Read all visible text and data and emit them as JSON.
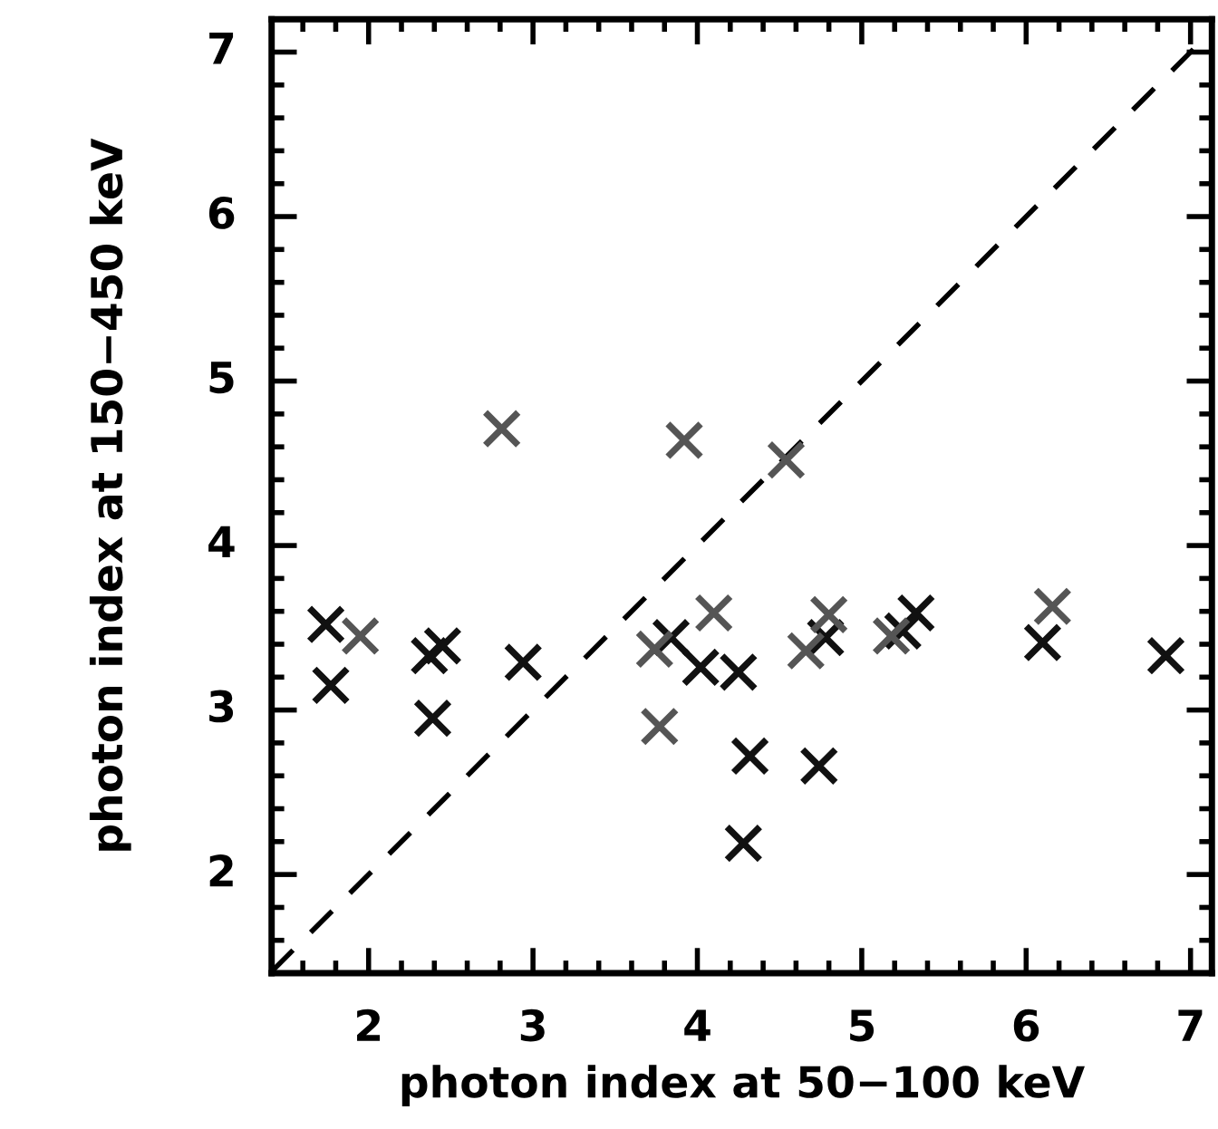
{
  "chart_data": {
    "type": "scatter",
    "xlabel": "photon index at 50−100 keV",
    "ylabel": "photon index at 150−450 keV",
    "xlim": [
      1.41,
      7.13
    ],
    "ylim": [
      1.4,
      7.2
    ],
    "xticks": [
      2,
      3,
      4,
      5,
      6,
      7
    ],
    "yticks": [
      2,
      3,
      4,
      5,
      6,
      7
    ],
    "grid": false,
    "legend": false,
    "marker": "cross",
    "series": [
      {
        "color": "#111111",
        "x": [
          1.74,
          1.77,
          2.37,
          2.45,
          2.39,
          2.94,
          3.84,
          4.02,
          4.25,
          4.32,
          4.28,
          4.74,
          4.78,
          5.33,
          5.25,
          6.1,
          6.85
        ],
        "values": [
          3.52,
          3.15,
          3.33,
          3.39,
          2.95,
          3.29,
          3.44,
          3.26,
          3.23,
          2.72,
          2.19,
          2.66,
          3.44,
          3.59,
          3.48,
          3.41,
          3.33
        ]
      },
      {
        "color": "#555555",
        "x": [
          1.95,
          2.81,
          3.92,
          4.54,
          3.74,
          3.77,
          4.1,
          4.66,
          4.8,
          5.18,
          6.16
        ],
        "values": [
          3.45,
          4.71,
          4.64,
          4.52,
          3.37,
          2.9,
          3.59,
          3.36,
          3.58,
          3.45,
          3.63
        ]
      },
      {
        "type": "line",
        "color": "#000000",
        "line_style": "dashed",
        "marker": "none",
        "x": [
          1.41,
          7.13
        ],
        "values": [
          1.41,
          7.13
        ]
      }
    ]
  }
}
